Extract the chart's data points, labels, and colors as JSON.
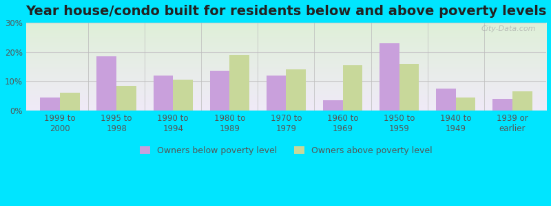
{
  "title": "Year house/condo built for residents below and above poverty levels",
  "categories": [
    "1999 to\n2000",
    "1995 to\n1998",
    "1990 to\n1994",
    "1980 to\n1989",
    "1970 to\n1979",
    "1960 to\n1969",
    "1950 to\n1959",
    "1940 to\n1949",
    "1939 or\nearlier"
  ],
  "below_poverty": [
    4.5,
    18.5,
    12.0,
    13.5,
    12.0,
    3.5,
    23.0,
    7.5,
    4.0
  ],
  "above_poverty": [
    6.0,
    8.5,
    10.5,
    19.0,
    14.0,
    15.5,
    16.0,
    4.5,
    6.5
  ],
  "below_color": "#c9a0dc",
  "above_color": "#c8d89a",
  "ylim": [
    0,
    30
  ],
  "yticks": [
    0,
    10,
    20,
    30
  ],
  "ytick_labels": [
    "0%",
    "10%",
    "20%",
    "30%"
  ],
  "background_outer": "#00e5ff",
  "background_inner_top": "#dff0d8",
  "background_inner_bottom": "#f0eaf8",
  "grid_color": "#cccccc",
  "title_fontsize": 14,
  "tick_fontsize": 8.5,
  "legend_fontsize": 9,
  "bar_width": 0.35,
  "legend_below_label": "Owners below poverty level",
  "legend_above_label": "Owners above poverty level",
  "watermark": "City-Data.com"
}
